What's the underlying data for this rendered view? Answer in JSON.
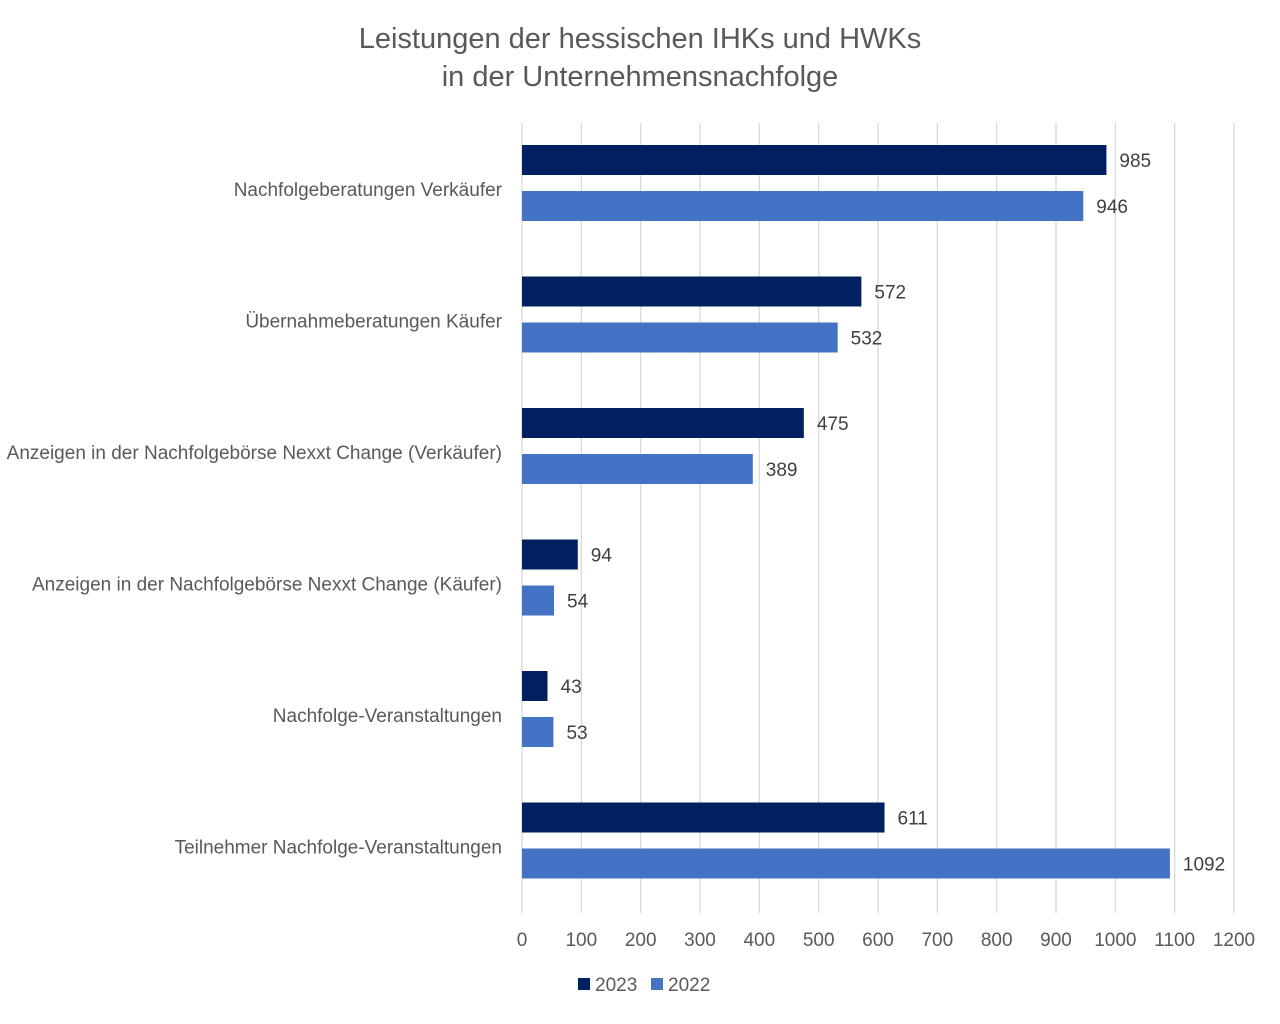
{
  "chart_data": {
    "type": "bar",
    "orientation": "horizontal",
    "title_lines": [
      "Leistungen der hessischen IHKs und HWKs",
      "in der Unternehmensnachfolge"
    ],
    "categories": [
      "Nachfolgeberatungen Verkäufer",
      "Übernahmeberatungen Käufer",
      "Anzeigen in der Nachfolgebörse Nexxt Change (Verkäufer)",
      "Anzeigen in der Nachfolgebörse Nexxt Change (Käufer)",
      "Nachfolge-Veranstaltungen",
      "Teilnehmer Nachfolge-Veranstaltungen"
    ],
    "series": [
      {
        "name": "2023",
        "color": "#002060",
        "values": [
          985,
          572,
          475,
          94,
          43,
          611
        ],
        "labels": [
          "985",
          "572",
          "475",
          "94",
          "43",
          "611"
        ]
      },
      {
        "name": "2022",
        "color": "#4472C4",
        "values": [
          946,
          532,
          389,
          54,
          53,
          1092
        ],
        "labels": [
          "946",
          "532",
          "389",
          "54",
          "53",
          "1092"
        ]
      }
    ],
    "xlim": [
      0,
      1200
    ],
    "xticks": [
      0,
      100,
      200,
      300,
      400,
      500,
      600,
      700,
      800,
      900,
      1000,
      1100,
      1200
    ],
    "xtick_labels": [
      "0",
      "100",
      "200",
      "300",
      "400",
      "500",
      "600",
      "700",
      "800",
      "900",
      "1000",
      "1100",
      "1200"
    ],
    "grid": true,
    "legend_position": "bottom-center",
    "data_labels": true
  }
}
